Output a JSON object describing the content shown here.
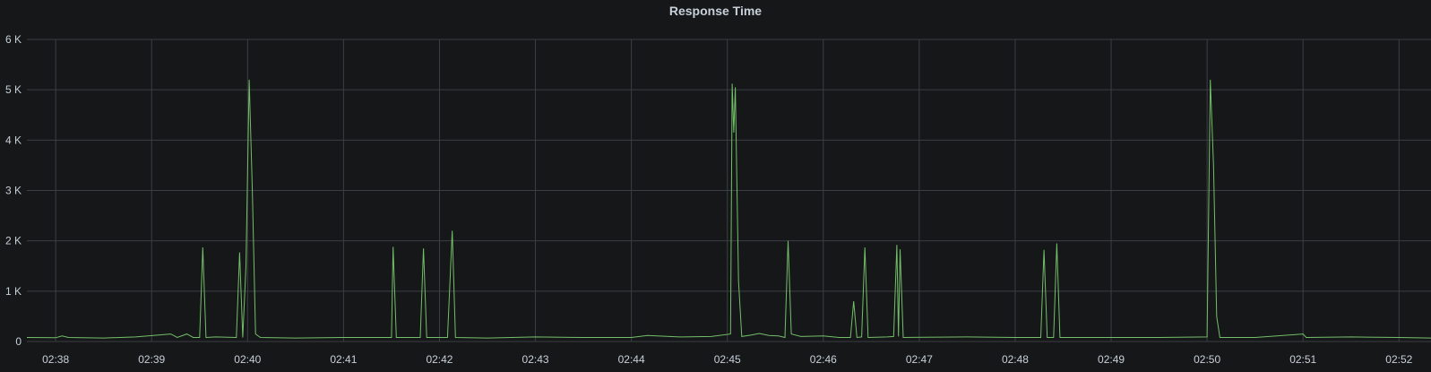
{
  "panel": {
    "title": "Response Time"
  },
  "chart_data": {
    "type": "line",
    "title": "Response Time",
    "xlabel": "",
    "ylabel": "",
    "ylim": [
      0,
      6000
    ],
    "xlim": [
      "02:37:42",
      "02:52:20"
    ],
    "y_ticks": [
      {
        "value": 0,
        "label": "0"
      },
      {
        "value": 1000,
        "label": "1 K"
      },
      {
        "value": 2000,
        "label": "2 K"
      },
      {
        "value": 3000,
        "label": "3 K"
      },
      {
        "value": 4000,
        "label": "4 K"
      },
      {
        "value": 5000,
        "label": "5 K"
      },
      {
        "value": 6000,
        "label": "6 K"
      }
    ],
    "x_ticks": [
      "02:38",
      "02:39",
      "02:40",
      "02:41",
      "02:42",
      "02:43",
      "02:44",
      "02:45",
      "02:46",
      "02:47",
      "02:48",
      "02:49",
      "02:50",
      "02:51",
      "02:52"
    ],
    "grid": true,
    "series_color": "#73bf69",
    "series": [
      {
        "values": [
          [
            "02:37:42",
            80
          ],
          [
            "02:38:00",
            75
          ],
          [
            "02:38:04",
            110
          ],
          [
            "02:38:08",
            80
          ],
          [
            "02:38:30",
            70
          ],
          [
            "02:38:50",
            90
          ],
          [
            "02:39:12",
            150
          ],
          [
            "02:39:16",
            80
          ],
          [
            "02:39:22",
            150
          ],
          [
            "02:39:26",
            80
          ],
          [
            "02:39:30",
            80
          ],
          [
            "02:39:32",
            1870
          ],
          [
            "02:39:34",
            80
          ],
          [
            "02:39:40",
            90
          ],
          [
            "02:39:53",
            80
          ],
          [
            "02:39:55",
            1770
          ],
          [
            "02:39:57",
            80
          ],
          [
            "02:39:59",
            1500
          ],
          [
            "02:40:01",
            5200
          ],
          [
            "02:40:03",
            3000
          ],
          [
            "02:40:05",
            150
          ],
          [
            "02:40:08",
            80
          ],
          [
            "02:40:30",
            70
          ],
          [
            "02:41:00",
            80
          ],
          [
            "02:41:30",
            80
          ],
          [
            "02:41:31",
            1880
          ],
          [
            "02:41:33",
            80
          ],
          [
            "02:41:48",
            80
          ],
          [
            "02:41:50",
            1850
          ],
          [
            "02:41:52",
            80
          ],
          [
            "02:42:05",
            80
          ],
          [
            "02:42:08",
            2200
          ],
          [
            "02:42:10",
            80
          ],
          [
            "02:42:30",
            70
          ],
          [
            "02:43:00",
            90
          ],
          [
            "02:43:30",
            80
          ],
          [
            "02:44:00",
            80
          ],
          [
            "02:44:10",
            120
          ],
          [
            "02:44:30",
            90
          ],
          [
            "02:44:50",
            100
          ],
          [
            "02:45:02",
            150
          ],
          [
            "02:45:03",
            5120
          ],
          [
            "02:45:04",
            4150
          ],
          [
            "02:45:05",
            5050
          ],
          [
            "02:45:07",
            1200
          ],
          [
            "02:45:09",
            100
          ],
          [
            "02:45:15",
            130
          ],
          [
            "02:45:20",
            160
          ],
          [
            "02:45:26",
            120
          ],
          [
            "02:45:32",
            110
          ],
          [
            "02:45:36",
            80
          ],
          [
            "02:45:38",
            2000
          ],
          [
            "02:45:40",
            150
          ],
          [
            "02:45:46",
            100
          ],
          [
            "02:46:00",
            110
          ],
          [
            "02:46:10",
            80
          ],
          [
            "02:46:17",
            80
          ],
          [
            "02:46:19",
            800
          ],
          [
            "02:46:21",
            80
          ],
          [
            "02:46:24",
            90
          ],
          [
            "02:46:26",
            1870
          ],
          [
            "02:46:28",
            80
          ],
          [
            "02:46:40",
            90
          ],
          [
            "02:46:44",
            100
          ],
          [
            "02:46:46",
            1920
          ],
          [
            "02:46:47",
            100
          ],
          [
            "02:46:48",
            1830
          ],
          [
            "02:46:50",
            80
          ],
          [
            "02:47:30",
            90
          ],
          [
            "02:48:00",
            80
          ],
          [
            "02:48:16",
            80
          ],
          [
            "02:48:18",
            1820
          ],
          [
            "02:48:20",
            80
          ],
          [
            "02:48:24",
            80
          ],
          [
            "02:48:26",
            1950
          ],
          [
            "02:48:28",
            80
          ],
          [
            "02:49:00",
            80
          ],
          [
            "02:49:30",
            80
          ],
          [
            "02:50:00",
            90
          ],
          [
            "02:50:02",
            5200
          ],
          [
            "02:50:04",
            3500
          ],
          [
            "02:50:06",
            500
          ],
          [
            "02:50:08",
            80
          ],
          [
            "02:50:30",
            80
          ],
          [
            "02:51:00",
            150
          ],
          [
            "02:51:02",
            80
          ],
          [
            "02:51:30",
            90
          ],
          [
            "02:52:00",
            80
          ],
          [
            "02:52:20",
            70
          ]
        ]
      }
    ]
  }
}
